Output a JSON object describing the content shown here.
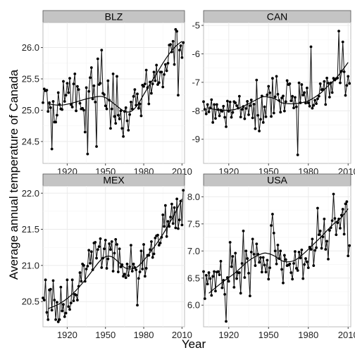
{
  "chart_data": {
    "type": "line",
    "xlabel": "Year",
    "ylabel": "Average annual temperature of Canada",
    "grid": true,
    "facets": [
      {
        "strip_label": "BLZ",
        "xlim": [
          1901,
          2012
        ],
        "ylim": [
          24.15,
          26.4
        ],
        "x_ticks": [
          1920,
          1950,
          1980,
          2010
        ],
        "y_ticks": [
          24.5,
          25.0,
          25.5,
          26.0
        ],
        "y_tick_labels": [
          "24.5",
          "25.0",
          "25.5",
          "26.0"
        ],
        "x_start": 1901,
        "values": [
          25.12,
          25.34,
          25.31,
          25.32,
          24.98,
          25.12,
          25.04,
          24.38,
          25.14,
          24.81,
          24.81,
          24.92,
          25.28,
          25.09,
          25.02,
          25.01,
          25.46,
          25.14,
          25.24,
          25.43,
          25.28,
          25.51,
          25.09,
          25.05,
          25.42,
          25.58,
          24.99,
          25.38,
          25.33,
          25.11,
          25.02,
          25.03,
          25.0,
          24.65,
          25.36,
          24.3,
          25.3,
          25.52,
          25.68,
          25.18,
          25.39,
          25.13,
          24.42,
          25.82,
          25.41,
          25.43,
          25.96,
          25.27,
          25.25,
          25.07,
          25.02,
          25.47,
          25.16,
          24.71,
          25.02,
          25.58,
          24.9,
          24.79,
          25.54,
          24.92,
          24.86,
          24.99,
          24.71,
          24.58,
          24.98,
          25.04,
          24.83,
          24.68,
          24.93,
          25.13,
          25.02,
          25.22,
          25.33,
          25.08,
          25.26,
          25.03,
          25.1,
          24.91,
          25.4,
          25.38,
          25.42,
          25.64,
          25.36,
          25.1,
          25.45,
          25.27,
          25.42,
          25.61,
          25.47,
          25.72,
          25.41,
          25.44,
          25.61,
          25.61,
          25.37,
          25.57,
          25.73,
          25.63,
          25.75,
          26.04,
          26.05,
          25.93,
          26.1,
          25.73,
          26.29,
          26.26,
          25.24,
          25.96,
          26.03,
          25.84,
          26.08
        ],
        "trend": [
          [
            1905,
            25.1
          ],
          [
            1915,
            25.08
          ],
          [
            1925,
            25.12
          ],
          [
            1935,
            25.18
          ],
          [
            1945,
            25.22
          ],
          [
            1950,
            25.2
          ],
          [
            1955,
            25.13
          ],
          [
            1960,
            25.05
          ],
          [
            1965,
            24.98
          ],
          [
            1970,
            24.98
          ],
          [
            1975,
            25.08
          ],
          [
            1980,
            25.25
          ],
          [
            1985,
            25.42
          ],
          [
            1990,
            25.58
          ],
          [
            1995,
            25.75
          ],
          [
            2000,
            25.9
          ],
          [
            2005,
            26.02
          ],
          [
            2010,
            26.1
          ]
        ]
      },
      {
        "strip_label": "CAN",
        "xlim": [
          1901,
          2012
        ],
        "ylim": [
          -9.85,
          -4.9
        ],
        "x_ticks": [
          1920,
          1950,
          1980,
          2010
        ],
        "y_ticks": [
          -9,
          -8,
          -7,
          -6,
          -5
        ],
        "y_tick_labels": [
          "-9",
          "-8",
          "-7",
          "-6",
          "-5"
        ],
        "x_start": 1901,
        "values": [
          -7.68,
          -7.95,
          -8.11,
          -7.78,
          -8.04,
          -7.9,
          -7.61,
          -8.41,
          -7.78,
          -8.27,
          -7.78,
          -7.96,
          -8.18,
          -7.98,
          -8.02,
          -7.84,
          -8.23,
          -8.56,
          -7.66,
          -8.02,
          -7.69,
          -8.23,
          -8.06,
          -7.68,
          -7.72,
          -7.82,
          -7.91,
          -7.49,
          -8.22,
          -7.95,
          -7.85,
          -8.28,
          -7.92,
          -7.67,
          -8.14,
          -7.82,
          -7.62,
          -8.25,
          -7.77,
          -8.63,
          -6.92,
          -8.16,
          -8.71,
          -8.3,
          -7.48,
          -8.41,
          -7.86,
          -8.21,
          -7.44,
          -7.14,
          -7.37,
          -8.2,
          -6.86,
          -8.08,
          -7.51,
          -6.79,
          -7.42,
          -7.64,
          -8.05,
          -7.55,
          -7.48,
          -8.01,
          -7.68,
          -6.94,
          -7.08,
          -7.05,
          -7.65,
          -7.49,
          -7.9,
          -7.53,
          -7.86,
          -9.55,
          -7.02,
          -7.72,
          -7.08,
          -7.45,
          -7.36,
          -7.73,
          -7.2,
          -7.72,
          -7.84,
          -5.75,
          -7.91,
          -7.81,
          -7.63,
          -7.75,
          -7.58,
          -7.49,
          -7.05,
          -7.26,
          -7.25,
          -6.97,
          -7.78,
          -6.85,
          -7.03,
          -7.52,
          -7.02,
          -7.36,
          -6.86,
          -6.92,
          -6.87,
          -6.85,
          -5.2,
          -7.02,
          -6.61,
          -5.58,
          -6.63,
          -7.46,
          -7.11,
          -6.79,
          -7.04
        ],
        "trend": [
          [
            1905,
            -7.92
          ],
          [
            1915,
            -7.98
          ],
          [
            1925,
            -7.95
          ],
          [
            1935,
            -7.75
          ],
          [
            1945,
            -7.52
          ],
          [
            1950,
            -7.52
          ],
          [
            1955,
            -7.58
          ],
          [
            1960,
            -7.72
          ],
          [
            1965,
            -7.75
          ],
          [
            1970,
            -7.75
          ],
          [
            1975,
            -7.72
          ],
          [
            1980,
            -7.65
          ],
          [
            1985,
            -7.52
          ],
          [
            1990,
            -7.35
          ],
          [
            1995,
            -7.12
          ],
          [
            2000,
            -6.9
          ],
          [
            2005,
            -6.62
          ],
          [
            2010,
            -6.3
          ]
        ]
      },
      {
        "strip_label": "MEX",
        "xlim": [
          1901,
          2012
        ],
        "ylim": [
          20.15,
          22.1
        ],
        "x_ticks": [
          1920,
          1950,
          1980,
          2010
        ],
        "y_ticks": [
          20.5,
          21.0,
          21.5,
          22.0
        ],
        "y_tick_labels": [
          "20.5",
          "21.0",
          "21.5",
          "22.0"
        ],
        "x_start": 1901,
        "values": [
          20.55,
          20.52,
          20.8,
          20.35,
          20.25,
          20.66,
          20.67,
          20.38,
          20.79,
          20.52,
          20.25,
          20.49,
          20.22,
          20.25,
          20.7,
          20.37,
          20.46,
          20.29,
          20.34,
          20.8,
          20.43,
          20.39,
          20.48,
          20.8,
          20.51,
          20.6,
          20.59,
          20.52,
          20.71,
          20.9,
          20.78,
          21.02,
          21.0,
          20.78,
          20.95,
          20.99,
          21.21,
          21.03,
          21.19,
          20.94,
          21.31,
          21.32,
          21.1,
          21.22,
          21.26,
          21.37,
          20.97,
          21.1,
          21.23,
          21.35,
          20.96,
          21.09,
          21.3,
          21.22,
          21.33,
          20.92,
          21.17,
          21.36,
          21.29,
          20.91,
          21.23,
          20.98,
          21.01,
          20.85,
          20.88,
          20.83,
          21.02,
          20.86,
          20.98,
          21.28,
          20.92,
          21.02,
          20.97,
          20.94,
          20.45,
          20.82,
          20.91,
          21.2,
          20.95,
          21.29,
          20.85,
          20.96,
          21.14,
          21.14,
          21.22,
          21.33,
          21.11,
          21.16,
          21.38,
          21.41,
          21.42,
          21.28,
          21.31,
          21.39,
          21.7,
          21.54,
          21.83,
          21.4,
          21.61,
          21.54,
          21.67,
          21.85,
          21.58,
          21.8,
          21.52,
          21.92,
          21.51,
          21.63,
          21.89,
          21.56,
          22.04
        ],
        "trend": [
          [
            1905,
            20.4
          ],
          [
            1915,
            20.48
          ],
          [
            1925,
            20.62
          ],
          [
            1935,
            20.82
          ],
          [
            1945,
            21.05
          ],
          [
            1950,
            21.12
          ],
          [
            1955,
            21.12
          ],
          [
            1960,
            21.05
          ],
          [
            1965,
            20.97
          ],
          [
            1970,
            20.95
          ],
          [
            1975,
            20.98
          ],
          [
            1980,
            21.07
          ],
          [
            1985,
            21.18
          ],
          [
            1990,
            21.3
          ],
          [
            1995,
            21.43
          ],
          [
            2000,
            21.58
          ],
          [
            2005,
            21.74
          ],
          [
            2010,
            21.92
          ]
        ]
      },
      {
        "strip_label": "USA",
        "xlim": [
          1901,
          2012
        ],
        "ylim": [
          5.6,
          8.2
        ],
        "x_ticks": [
          1920,
          1950,
          1980,
          2010
        ],
        "y_ticks": [
          6.0,
          6.5,
          7.0,
          7.5,
          8.0
        ],
        "y_tick_labels": [
          "6.0",
          "6.5",
          "7.0",
          "7.5",
          "8.0"
        ],
        "x_start": 1901,
        "values": [
          6.62,
          6.12,
          6.55,
          6.39,
          6.6,
          6.49,
          6.18,
          6.53,
          6.62,
          6.26,
          6.61,
          6.62,
          6.56,
          6.81,
          6.32,
          6.46,
          6.2,
          5.7,
          6.51,
          6.44,
          7.16,
          6.71,
          6.9,
          6.33,
          6.96,
          6.49,
          6.6,
          6.6,
          6.22,
          6.77,
          7.37,
          6.51,
          7.0,
          6.86,
          6.59,
          6.17,
          6.98,
          7.22,
          6.94,
          6.73,
          7.13,
          6.94,
          6.79,
          6.88,
          6.61,
          6.88,
          6.74,
          6.61,
          6.83,
          6.48,
          6.69,
          7.47,
          7.68,
          7.33,
          7.0,
          6.76,
          7.11,
          6.86,
          7.0,
          6.66,
          6.41,
          6.92,
          6.84,
          6.73,
          6.74,
          6.76,
          6.6,
          6.48,
          6.77,
          6.99,
          6.68,
          6.64,
          6.98,
          6.87,
          7.02,
          6.49,
          6.75,
          6.86,
          6.8,
          6.69,
          7.07,
          7.03,
          7.22,
          6.73,
          7.01,
          7.06,
          7.79,
          7.3,
          7.37,
          7.05,
          7.26,
          7.59,
          7.03,
          7.18,
          6.85,
          7.38,
          7.43,
          7.56,
          8.05,
          7.6,
          7.3,
          7.52,
          7.59,
          7.42,
          7.66,
          7.77,
          7.31,
          7.87,
          7.91,
          6.91,
          7.1
        ],
        "trend": [
          [
            1905,
            6.22
          ],
          [
            1915,
            6.42
          ],
          [
            1925,
            6.6
          ],
          [
            1935,
            6.82
          ],
          [
            1945,
            6.95
          ],
          [
            1950,
            6.95
          ],
          [
            1955,
            6.9
          ],
          [
            1960,
            6.82
          ],
          [
            1965,
            6.8
          ],
          [
            1970,
            6.83
          ],
          [
            1975,
            6.92
          ],
          [
            1980,
            7.03
          ],
          [
            1985,
            7.15
          ],
          [
            1990,
            7.27
          ],
          [
            1995,
            7.4
          ],
          [
            2000,
            7.52
          ],
          [
            2005,
            7.62
          ],
          [
            2010,
            7.78
          ]
        ]
      }
    ]
  }
}
